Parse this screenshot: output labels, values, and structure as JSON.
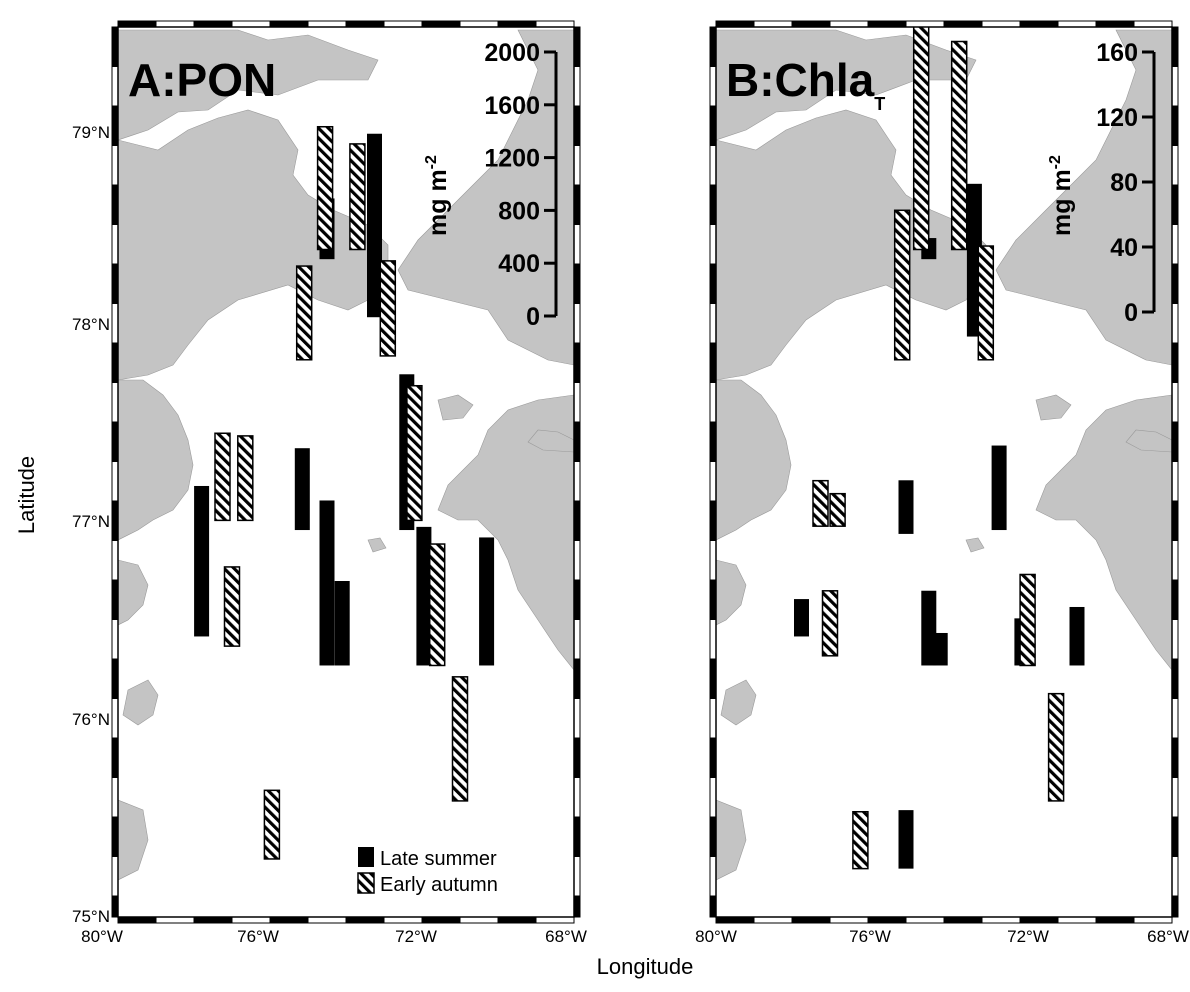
{
  "figure": {
    "xlabel": "Longitude",
    "ylabel": "Latitude",
    "lat_ticks": [
      "75°N",
      "76°N",
      "77°N",
      "78°N",
      "79°N"
    ],
    "lon_ticks": [
      "80°W",
      "76°W",
      "72°W",
      "68°W"
    ],
    "legend": {
      "late_summer": "Late summer",
      "early_autumn": "Early autumn"
    },
    "colors": {
      "land": "#c4c4c4",
      "water": "#ffffff",
      "late_summer": "#000000",
      "early_autumn": "#ffffff"
    }
  },
  "panels": [
    {
      "title": "A:PON",
      "unit_base": "mg m",
      "unit_exp": "-2",
      "scale_ticks": [
        "2000",
        "1600",
        "1200",
        "800",
        "400",
        "0"
      ],
      "scale_max": 2000
    },
    {
      "title": "B:Chla",
      "title_sub": "T",
      "unit_base": "mg m",
      "unit_exp": "-2",
      "scale_ticks": [
        "160",
        "120",
        "80",
        "40",
        "0"
      ],
      "scale_max": 160
    }
  ],
  "chart_data": [
    {
      "type": "bar",
      "title": "A:PON",
      "unit": "mg m-2",
      "xlim_lon_west": [
        80,
        68
      ],
      "ylim_lat_north": [
        75,
        79.6
      ],
      "series": [
        {
          "name": "Late summer",
          "stations": [
            {
              "lon": 77.8,
              "lat": 76.45,
              "value": 1140
            },
            {
              "lon": 75.15,
              "lat": 77.0,
              "value": 620
            },
            {
              "lon": 74.5,
              "lat": 78.4,
              "value": 460
            },
            {
              "lon": 74.5,
              "lat": 76.3,
              "value": 1250
            },
            {
              "lon": 74.1,
              "lat": 76.3,
              "value": 640
            },
            {
              "lon": 73.25,
              "lat": 78.1,
              "value": 1390
            },
            {
              "lon": 72.4,
              "lat": 77.0,
              "value": 1180
            },
            {
              "lon": 71.95,
              "lat": 76.3,
              "value": 1050
            },
            {
              "lon": 70.3,
              "lat": 76.3,
              "value": 970
            }
          ]
        },
        {
          "name": "Early autumn",
          "stations": [
            {
              "lon": 77.25,
              "lat": 77.05,
              "value": 660
            },
            {
              "lon": 77.0,
              "lat": 76.4,
              "value": 600
            },
            {
              "lon": 76.65,
              "lat": 77.05,
              "value": 640
            },
            {
              "lon": 75.95,
              "lat": 75.3,
              "value": 520
            },
            {
              "lon": 75.1,
              "lat": 77.88,
              "value": 710
            },
            {
              "lon": 74.55,
              "lat": 78.45,
              "value": 930
            },
            {
              "lon": 73.7,
              "lat": 78.45,
              "value": 800
            },
            {
              "lon": 72.9,
              "lat": 77.9,
              "value": 720
            },
            {
              "lon": 72.2,
              "lat": 77.05,
              "value": 1020
            },
            {
              "lon": 71.6,
              "lat": 76.3,
              "value": 920
            },
            {
              "lon": 71.0,
              "lat": 75.6,
              "value": 940
            }
          ]
        }
      ]
    },
    {
      "type": "bar",
      "title": "B:ChlaT",
      "unit": "mg m-2",
      "xlim_lon_west": [
        80,
        68
      ],
      "ylim_lat_north": [
        75,
        79.6
      ],
      "series": [
        {
          "name": "Late summer",
          "stations": [
            {
              "lon": 77.75,
              "lat": 76.45,
              "value": 23
            },
            {
              "lon": 75.0,
              "lat": 76.98,
              "value": 33
            },
            {
              "lon": 74.4,
              "lat": 78.4,
              "value": 13
            },
            {
              "lon": 74.4,
              "lat": 76.3,
              "value": 46
            },
            {
              "lon": 74.1,
              "lat": 76.3,
              "value": 20
            },
            {
              "lon": 75.0,
              "lat": 75.25,
              "value": 36
            },
            {
              "lon": 73.2,
              "lat": 78.0,
              "value": 94
            },
            {
              "lon": 72.55,
              "lat": 77.0,
              "value": 52
            },
            {
              "lon": 71.95,
              "lat": 76.3,
              "value": 29
            },
            {
              "lon": 70.5,
              "lat": 76.3,
              "value": 36
            }
          ]
        },
        {
          "name": "Early autumn",
          "stations": [
            {
              "lon": 77.25,
              "lat": 77.02,
              "value": 28
            },
            {
              "lon": 77.0,
              "lat": 76.35,
              "value": 40
            },
            {
              "lon": 76.8,
              "lat": 77.02,
              "value": 20
            },
            {
              "lon": 76.2,
              "lat": 75.25,
              "value": 35
            },
            {
              "lon": 75.1,
              "lat": 77.88,
              "value": 92
            },
            {
              "lon": 74.6,
              "lat": 78.45,
              "value": 170
            },
            {
              "lon": 73.6,
              "lat": 78.45,
              "value": 128
            },
            {
              "lon": 72.9,
              "lat": 77.88,
              "value": 70
            },
            {
              "lon": 71.8,
              "lat": 76.3,
              "value": 56
            },
            {
              "lon": 71.05,
              "lat": 75.6,
              "value": 66
            }
          ]
        }
      ]
    }
  ]
}
